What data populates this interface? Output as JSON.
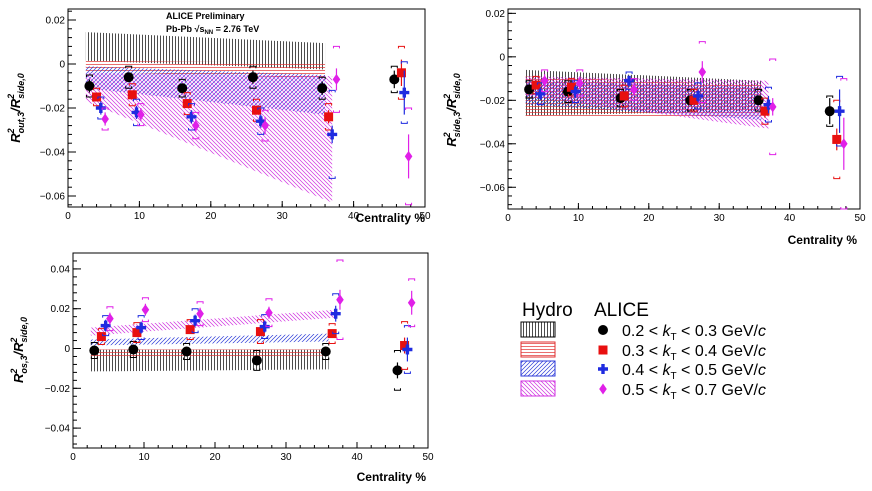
{
  "annotations": {
    "preliminary": "ALICE Preliminary",
    "system": "Pb-Pb  √s",
    "system_sub": "NN",
    "energy": " = 2.76 TeV"
  },
  "legend": {
    "hydro_header": "Hydro",
    "alice_header": "ALICE",
    "entries": [
      {
        "pre": "0.2 < ",
        "k": "k",
        "sub": "T",
        "post": " < 0.3 GeV/",
        "c": "c"
      },
      {
        "pre": "0.3 < ",
        "k": "k",
        "sub": "T",
        "post": " < 0.4 GeV/",
        "c": "c"
      },
      {
        "pre": "0.4 < ",
        "k": "k",
        "sub": "T",
        "post": " < 0.5 GeV/",
        "c": "c"
      },
      {
        "pre": "0.5 < ",
        "k": "k",
        "sub": "T",
        "post": " < 0.7 GeV/",
        "c": "c"
      }
    ]
  },
  "colors": {
    "series": [
      "#000000",
      "#e81010",
      "#1f2be0",
      "#e020e8"
    ],
    "hydro": [
      "#000000",
      "#e03030",
      "#2c3ad8",
      "#d030e0"
    ]
  },
  "chart_data": [
    {
      "type": "scatter",
      "id": "out",
      "title": "",
      "ylabel": {
        "base": "R",
        "sup1": "2",
        "sub1": "out,3",
        "slash": "/R",
        "sup2": "2",
        "sub2": "side,0"
      },
      "xlabel": "Centrality %",
      "xlim": [
        0,
        50
      ],
      "ylim": [
        -0.065,
        0.025
      ],
      "xticks": [
        0,
        10,
        20,
        30,
        40,
        50
      ],
      "yticks": [
        -0.06,
        -0.04,
        -0.02,
        0,
        0.02
      ],
      "ytick_labels": [
        "−0.06",
        "−0.04",
        "−0.02",
        "0",
        "0.02"
      ],
      "series": [
        {
          "name": "0.2 < kT < 0.3 GeV/c",
          "marker": "circle",
          "x": [
            3,
            8.5,
            16,
            25.9,
            35.6,
            45.7
          ],
          "y": [
            -0.01,
            -0.006,
            -0.011,
            -0.006,
            -0.011,
            -0.007
          ],
          "err": [
            0.003,
            0.002,
            0.002,
            0.003,
            0.003,
            0.004
          ],
          "sys": [
            0.005,
            0.005,
            0.004,
            0.005,
            0.005,
            0.006
          ]
        },
        {
          "name": "0.3 < kT < 0.4 GeV/c",
          "marker": "square",
          "x": [
            4,
            9,
            16.7,
            26.4,
            36.5,
            46.7
          ],
          "y": [
            -0.015,
            -0.014,
            -0.018,
            -0.021,
            -0.024,
            -0.004
          ],
          "err": [
            0.002,
            0.002,
            0.002,
            0.002,
            0.003,
            0.006
          ],
          "sys": [
            0.004,
            0.005,
            0.005,
            0.005,
            0.006,
            0.012
          ]
        },
        {
          "name": "0.4 < kT < 0.5 GeV/c",
          "marker": "cross",
          "x": [
            4.6,
            9.6,
            17.3,
            27,
            37,
            47.1
          ],
          "y": [
            -0.02,
            -0.022,
            -0.024,
            -0.026,
            -0.032,
            -0.013
          ],
          "err": [
            0.003,
            0.003,
            0.003,
            0.003,
            0.004,
            0.01
          ],
          "sys": [
            0.005,
            0.006,
            0.006,
            0.006,
            0.02,
            0.014
          ]
        },
        {
          "name": "0.5 < kT < 0.7 GeV/c",
          "marker": "diamond",
          "x": [
            5.2,
            10.2,
            17.9,
            27.6,
            37.6,
            47.7
          ],
          "y": [
            -0.025,
            -0.023,
            -0.028,
            -0.028,
            -0.007,
            -0.042
          ],
          "err": [
            0.003,
            0.003,
            0.003,
            0.004,
            0.005,
            0.01
          ],
          "sys": [
            0.005,
            0.005,
            0.006,
            0.007,
            0.015,
            0.022
          ]
        }
      ],
      "hydro": [
        {
          "name": "Hydro 0.2-0.3",
          "x": [
            2.5,
            36
          ],
          "ylow": [
            0.0015,
            -0.0025
          ],
          "yhigh": [
            0.0145,
            0.0095
          ]
        },
        {
          "name": "Hydro 0.3-0.4",
          "x": [
            2.5,
            36
          ],
          "ylow": [
            -0.0035,
            -0.0065
          ],
          "yhigh": [
            0.0015,
            0.0005
          ]
        },
        {
          "name": "Hydro 0.4-0.5",
          "x": [
            2.5,
            36
          ],
          "ylow": [
            -0.011,
            -0.023
          ],
          "yhigh": [
            -0.001,
            -0.005
          ]
        },
        {
          "name": "Hydro 0.5-0.7",
          "x": [
            2.5,
            37
          ],
          "ylow": [
            -0.017,
            -0.063
          ],
          "yhigh": [
            -0.004,
            -0.0055
          ]
        }
      ]
    },
    {
      "type": "scatter",
      "id": "side",
      "title": "",
      "ylabel": {
        "base": "R",
        "sup1": "2",
        "sub1": "side,3",
        "slash": "/R",
        "sup2": "2",
        "sub2": "side,0"
      },
      "xlabel": "Centrality %",
      "xlim": [
        0,
        50
      ],
      "ylim": [
        -0.07,
        0.022
      ],
      "xticks": [
        0,
        10,
        20,
        30,
        40,
        50
      ],
      "yticks": [
        -0.06,
        -0.04,
        -0.02,
        0,
        0.02
      ],
      "ytick_labels": [
        "−0.06",
        "−0.04",
        "−0.02",
        "0",
        "0.02"
      ],
      "series": [
        {
          "name": "0.2 < kT < 0.3 GeV/c",
          "marker": "circle",
          "x": [
            3,
            8.5,
            16,
            25.9,
            35.6,
            45.7
          ],
          "y": [
            -0.015,
            -0.016,
            -0.019,
            -0.02,
            -0.02,
            -0.025
          ],
          "err": [
            0.002,
            0.002,
            0.002,
            0.002,
            0.002,
            0.006
          ],
          "sys": [
            0.004,
            0.005,
            0.004,
            0.005,
            0.005,
            0.007
          ]
        },
        {
          "name": "0.3 < kT < 0.4 GeV/c",
          "marker": "square",
          "x": [
            4,
            9,
            16.5,
            26.4,
            36.5,
            46.7
          ],
          "y": [
            -0.013,
            -0.014,
            -0.018,
            -0.02,
            -0.025,
            -0.038
          ],
          "err": [
            0.002,
            0.002,
            0.002,
            0.002,
            0.003,
            0.005
          ],
          "sys": [
            0.004,
            0.004,
            0.005,
            0.005,
            0.006,
            0.018
          ]
        },
        {
          "name": "0.4 < kT < 0.5 GeV/c",
          "marker": "cross",
          "x": [
            4.6,
            9.6,
            17.2,
            27,
            37,
            47.1
          ],
          "y": [
            -0.017,
            -0.016,
            -0.011,
            -0.018,
            -0.022,
            -0.025
          ],
          "err": [
            0.003,
            0.003,
            0.002,
            0.003,
            0.004,
            0.01
          ],
          "sys": [
            0.005,
            0.005,
            0.004,
            0.006,
            0.008,
            0.016
          ]
        },
        {
          "name": "0.5 < kT < 0.7 GeV/c",
          "marker": "diamond",
          "x": [
            5.2,
            10.2,
            17.9,
            27.6,
            37.6,
            47.7
          ],
          "y": [
            -0.011,
            -0.012,
            -0.015,
            -0.007,
            -0.023,
            -0.04
          ],
          "err": [
            0.003,
            0.003,
            0.003,
            0.005,
            0.004,
            0.012
          ],
          "sys": [
            0.005,
            0.006,
            0.005,
            0.014,
            0.022,
            0.03
          ]
        }
      ],
      "hydro": [
        {
          "name": "Hydro 0.2-0.3",
          "x": [
            2.5,
            36
          ],
          "ylow": [
            -0.027,
            -0.025
          ],
          "yhigh": [
            -0.006,
            -0.011
          ]
        },
        {
          "name": "Hydro 0.3-0.4",
          "x": [
            2.5,
            36
          ],
          "ylow": [
            -0.028,
            -0.027
          ],
          "yhigh": [
            -0.009,
            -0.013
          ]
        },
        {
          "name": "Hydro 0.4-0.5",
          "x": [
            2.5,
            36
          ],
          "ylow": [
            -0.022,
            -0.029
          ],
          "yhigh": [
            -0.011,
            -0.014
          ]
        },
        {
          "name": "Hydro 0.5-0.7",
          "x": [
            2.5,
            37
          ],
          "ylow": [
            -0.018,
            -0.033
          ],
          "yhigh": [
            -0.009,
            -0.011
          ]
        }
      ]
    },
    {
      "type": "scatter",
      "id": "os",
      "title": "",
      "ylabel": {
        "base": "R",
        "sup1": "2",
        "sub1": "os,3",
        "slash": "/R",
        "sup2": "2",
        "sub2": "side,0"
      },
      "xlabel": "Centrality %",
      "xlim": [
        0,
        50
      ],
      "ylim": [
        -0.05,
        0.048
      ],
      "xticks": [
        0,
        10,
        20,
        30,
        40,
        50
      ],
      "yticks": [
        -0.04,
        -0.02,
        0,
        0.02,
        0.04
      ],
      "ytick_labels": [
        "−0.04",
        "−0.02",
        "0",
        "0.02",
        "0.04"
      ],
      "series": [
        {
          "name": "0.2 < kT < 0.3 GeV/c",
          "marker": "circle",
          "x": [
            3,
            8.5,
            16,
            25.9,
            35.6,
            45.7
          ],
          "y": [
            -0.001,
            -0.0005,
            -0.0015,
            -0.006,
            -0.0015,
            -0.011
          ],
          "err": [
            0.002,
            0.002,
            0.002,
            0.002,
            0.002,
            0.004
          ],
          "sys": [
            0.004,
            0.004,
            0.004,
            0.005,
            0.004,
            0.01
          ]
        },
        {
          "name": "0.3 < kT < 0.4 GeV/c",
          "marker": "square",
          "x": [
            4,
            9,
            16.5,
            26.4,
            36.5,
            46.7
          ],
          "y": [
            0.006,
            0.008,
            0.0095,
            0.0085,
            0.0075,
            0.0015
          ],
          "err": [
            0.002,
            0.002,
            0.002,
            0.002,
            0.002,
            0.004
          ],
          "sys": [
            0.004,
            0.005,
            0.005,
            0.006,
            0.005,
            0.012
          ]
        },
        {
          "name": "0.4 < kT < 0.5 GeV/c",
          "marker": "cross",
          "x": [
            4.6,
            9.6,
            17.2,
            27,
            37,
            47.1
          ],
          "y": [
            0.0115,
            0.0105,
            0.014,
            0.011,
            0.0175,
            -0.0005
          ],
          "err": [
            0.003,
            0.003,
            0.003,
            0.003,
            0.004,
            0.006
          ],
          "sys": [
            0.005,
            0.006,
            0.006,
            0.006,
            0.01,
            0.012
          ]
        },
        {
          "name": "0.5 < kT < 0.7 GeV/c",
          "marker": "diamond",
          "x": [
            5.2,
            10.2,
            17.9,
            27.6,
            37.6,
            47.7
          ],
          "y": [
            0.015,
            0.0195,
            0.0175,
            0.018,
            0.0245,
            0.023
          ],
          "err": [
            0.003,
            0.003,
            0.003,
            0.003,
            0.005,
            0.006
          ],
          "sys": [
            0.006,
            0.006,
            0.006,
            0.007,
            0.02,
            0.012
          ]
        }
      ],
      "hydro": [
        {
          "name": "Hydro 0.2-0.3",
          "x": [
            2.5,
            36
          ],
          "ylow": [
            -0.0115,
            -0.0105
          ],
          "yhigh": [
            -0.0005,
            -0.0005
          ]
        },
        {
          "name": "Hydro 0.3-0.4",
          "x": [
            2.5,
            36
          ],
          "ylow": [
            -0.0045,
            -0.0035
          ],
          "yhigh": [
            -0.0005,
            -0.0005
          ]
        },
        {
          "name": "Hydro 0.4-0.5",
          "x": [
            2.5,
            36
          ],
          "ylow": [
            0.0015,
            0.0035
          ],
          "yhigh": [
            0.0045,
            0.0075
          ]
        },
        {
          "name": "Hydro 0.5-0.7",
          "x": [
            2.5,
            37
          ],
          "ylow": [
            0.0065,
            0.0155
          ],
          "yhigh": [
            0.0105,
            0.0195
          ]
        }
      ]
    }
  ]
}
